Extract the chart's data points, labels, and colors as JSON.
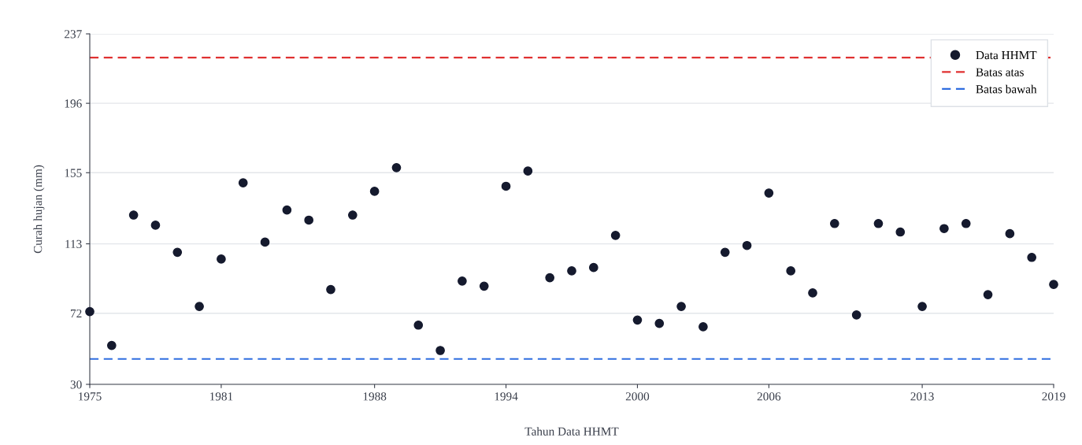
{
  "chart_data": {
    "type": "scatter",
    "xlabel": "Tahun Data HHMT",
    "ylabel": "Curah hujan (mm)",
    "x": [
      1975,
      1976,
      1977,
      1978,
      1979,
      1980,
      1981,
      1982,
      1983,
      1984,
      1985,
      1986,
      1987,
      1988,
      1989,
      1990,
      1991,
      1992,
      1993,
      1994,
      1995,
      1996,
      1997,
      1998,
      1999,
      2000,
      2001,
      2002,
      2003,
      2004,
      2005,
      2006,
      2007,
      2008,
      2009,
      2010,
      2011,
      2012,
      2013,
      2014,
      2015,
      2016,
      2017,
      2018,
      2019
    ],
    "series": [
      {
        "name": "Data HHMT",
        "color": "#151a2e",
        "values": [
          73,
          53,
          130,
          124,
          108,
          76,
          104,
          149,
          114,
          133,
          127,
          86,
          130,
          144,
          158,
          65,
          50,
          91,
          88,
          147,
          156,
          93,
          97,
          99,
          118,
          68,
          66,
          76,
          64,
          108,
          112,
          143,
          97,
          84,
          125,
          71,
          125,
          120,
          76,
          122,
          125,
          83,
          119,
          105,
          89
        ]
      }
    ],
    "ref_lines": [
      {
        "axis": "y",
        "value": 223,
        "label": "Batas atas",
        "color": "#e03131",
        "line_style": "dashed"
      },
      {
        "axis": "y",
        "value": 45,
        "label": "Batas bawah",
        "color": "#2f6de0",
        "line_style": "dashed"
      }
    ],
    "xlim": [
      1975,
      2019
    ],
    "xticks": [
      1975,
      1981,
      1988,
      1994,
      2000,
      2006,
      2013,
      2019
    ],
    "ylim": [
      30,
      237
    ],
    "yticks": [
      30,
      72,
      113,
      155,
      196,
      237
    ],
    "grid": "y",
    "legend": "top right",
    "marker": "circle"
  }
}
